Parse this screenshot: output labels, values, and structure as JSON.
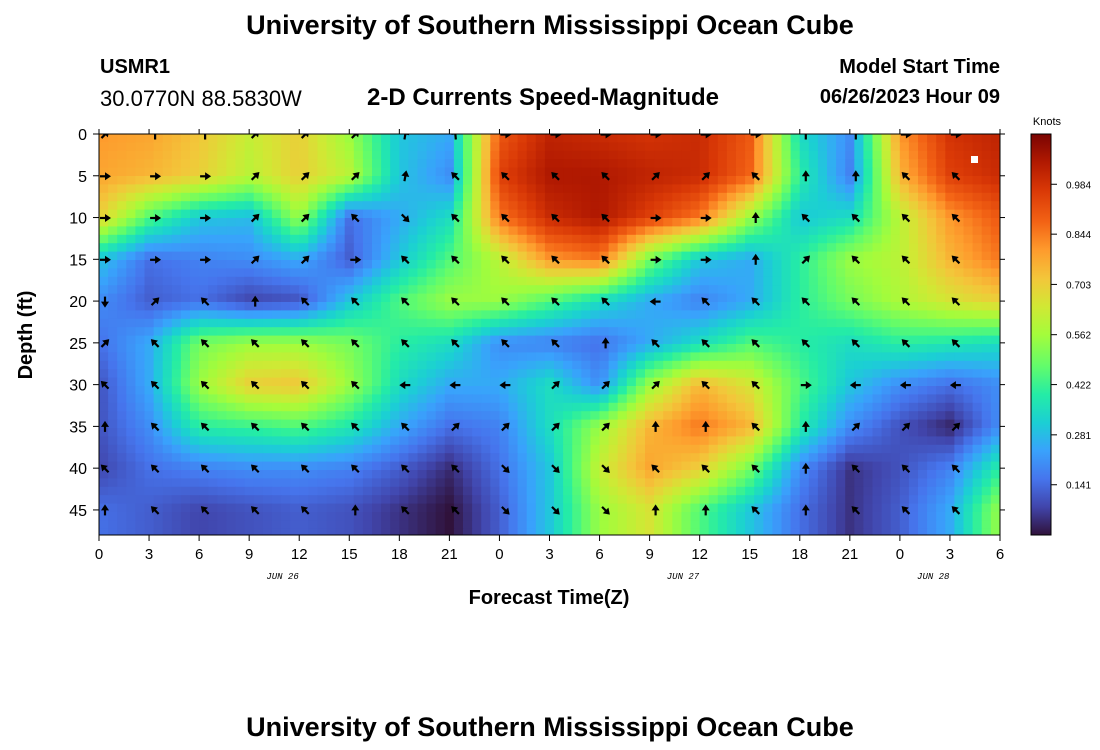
{
  "header": {
    "title": "University of Southern Mississippi Ocean Cube",
    "station_id": "USMR1",
    "coordinates": "30.0770N  88.5830W",
    "subtitle": "2-D Currents Speed-Magnitude",
    "model_start_label": "Model Start Time",
    "model_start_value": "06/26/2023 Hour 09"
  },
  "footer": {
    "title": "University of Southern Mississippi Ocean Cube"
  },
  "chart_data": {
    "type": "heatmap",
    "title": "2-D Currents Speed-Magnitude",
    "xlabel": "Forecast Time(Z)",
    "ylabel": "Depth (ft)",
    "x_ticks": [
      "0",
      "3",
      "6",
      "9",
      "12",
      "15",
      "18",
      "21",
      "0",
      "3",
      "6",
      "9",
      "12",
      "15",
      "18",
      "21",
      "0",
      "3",
      "6"
    ],
    "x_hours": [
      0,
      54
    ],
    "date_labels": [
      {
        "label": "JUN 26",
        "hour": 11
      },
      {
        "label": "JUN 27",
        "hour": 35
      },
      {
        "label": "JUN 28",
        "hour": 50
      }
    ],
    "y_ticks": [
      0,
      5,
      10,
      15,
      20,
      25,
      30,
      35,
      40,
      45
    ],
    "ylim": [
      0,
      48
    ],
    "colorbar": {
      "title": "Knots",
      "ticks": [
        0.984,
        0.844,
        0.703,
        0.562,
        0.422,
        0.281,
        0.141
      ],
      "range": [
        0,
        1.125
      ]
    },
    "arrow_hours": [
      0,
      3,
      6,
      9,
      12,
      15,
      18,
      21,
      24,
      27,
      30,
      33,
      36,
      39,
      42,
      45,
      48,
      51,
      54
    ],
    "arrow_depths": [
      0,
      5,
      10,
      15,
      20,
      25,
      30,
      35,
      40,
      45
    ],
    "directions_deg": [
      [
        45,
        0,
        0,
        45,
        45,
        45,
        10,
        355,
        90,
        90,
        90,
        90,
        90,
        90,
        0,
        0,
        90,
        90,
        0
      ],
      [
        90,
        90,
        90,
        45,
        45,
        45,
        10,
        315,
        315,
        315,
        315,
        45,
        45,
        315,
        0,
        0,
        315,
        315,
        0
      ],
      [
        90,
        90,
        90,
        45,
        45,
        315,
        135,
        315,
        315,
        315,
        315,
        90,
        90,
        0,
        315,
        315,
        315,
        315,
        0
      ],
      [
        90,
        90,
        90,
        45,
        45,
        90,
        315,
        315,
        315,
        315,
        315,
        90,
        90,
        0,
        45,
        315,
        315,
        315,
        0
      ],
      [
        180,
        45,
        315,
        0,
        315,
        315,
        315,
        315,
        315,
        315,
        315,
        270,
        315,
        315,
        315,
        315,
        315,
        315,
        0
      ],
      [
        45,
        315,
        315,
        315,
        315,
        315,
        315,
        315,
        315,
        315,
        0,
        315,
        315,
        315,
        315,
        315,
        315,
        315,
        0
      ],
      [
        315,
        315,
        315,
        315,
        315,
        315,
        270,
        270,
        270,
        45,
        45,
        45,
        315,
        315,
        90,
        270,
        270,
        270,
        45
      ],
      [
        0,
        315,
        315,
        315,
        315,
        315,
        315,
        45,
        45,
        45,
        45,
        0,
        0,
        315,
        0,
        45,
        45,
        45,
        45
      ],
      [
        315,
        315,
        315,
        315,
        315,
        315,
        315,
        315,
        135,
        135,
        135,
        315,
        315,
        315,
        0,
        315,
        315,
        315,
        0
      ],
      [
        0,
        315,
        315,
        315,
        315,
        0,
        315,
        315,
        135,
        135,
        135,
        0,
        0,
        315,
        0,
        315,
        315,
        315,
        45
      ]
    ],
    "speed_grid_note": "Speed magnitude field in knots sampled on the arrow grid (depth rows x hour columns)",
    "speed_grid": [
      [
        0.8,
        0.78,
        0.72,
        0.62,
        0.7,
        0.55,
        0.3,
        0.25,
        0.9,
        1.02,
        1.0,
        0.98,
        1.0,
        0.9,
        0.35,
        0.2,
        0.8,
        0.98,
        1.02
      ],
      [
        0.78,
        0.75,
        0.7,
        0.6,
        0.7,
        0.6,
        0.3,
        0.2,
        0.95,
        1.05,
        1.05,
        1.02,
        1.0,
        0.88,
        0.4,
        0.18,
        0.75,
        0.95,
        1.0
      ],
      [
        0.7,
        0.45,
        0.3,
        0.28,
        0.55,
        0.15,
        0.25,
        0.35,
        0.85,
        1.0,
        1.05,
        0.95,
        0.85,
        0.55,
        0.3,
        0.35,
        0.6,
        0.8,
        0.9
      ],
      [
        0.3,
        0.15,
        0.18,
        0.2,
        0.25,
        0.12,
        0.3,
        0.45,
        0.6,
        0.8,
        0.85,
        0.5,
        0.3,
        0.25,
        0.4,
        0.55,
        0.6,
        0.75,
        0.85
      ],
      [
        0.2,
        0.12,
        0.15,
        0.08,
        0.1,
        0.3,
        0.45,
        0.55,
        0.55,
        0.45,
        0.35,
        0.25,
        0.18,
        0.25,
        0.4,
        0.5,
        0.58,
        0.65,
        0.7
      ],
      [
        0.15,
        0.25,
        0.5,
        0.55,
        0.55,
        0.5,
        0.4,
        0.35,
        0.2,
        0.18,
        0.15,
        0.25,
        0.35,
        0.45,
        0.4,
        0.35,
        0.4,
        0.38,
        0.35
      ],
      [
        0.1,
        0.25,
        0.55,
        0.7,
        0.72,
        0.55,
        0.35,
        0.25,
        0.25,
        0.35,
        0.2,
        0.55,
        0.75,
        0.65,
        0.45,
        0.3,
        0.2,
        0.15,
        0.2
      ],
      [
        0.1,
        0.2,
        0.4,
        0.42,
        0.45,
        0.38,
        0.25,
        0.15,
        0.18,
        0.35,
        0.55,
        0.75,
        0.85,
        0.75,
        0.4,
        0.2,
        0.1,
        0.03,
        0.2
      ],
      [
        0.08,
        0.15,
        0.18,
        0.2,
        0.2,
        0.18,
        0.12,
        0.04,
        0.15,
        0.3,
        0.62,
        0.78,
        0.7,
        0.5,
        0.2,
        0.05,
        0.1,
        0.18,
        0.4
      ],
      [
        0.15,
        0.12,
        0.08,
        0.1,
        0.12,
        0.1,
        0.05,
        0.0,
        0.12,
        0.3,
        0.55,
        0.65,
        0.45,
        0.3,
        0.15,
        0.05,
        0.12,
        0.25,
        0.55
      ]
    ]
  }
}
